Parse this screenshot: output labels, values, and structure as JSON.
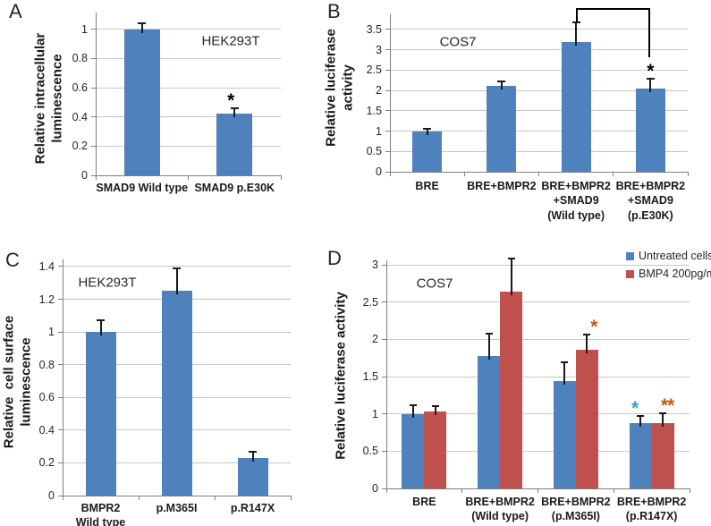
{
  "figure_background": "#ffffff",
  "colors": {
    "bar_blue": "#4F81BD",
    "bar_red": "#C0504D",
    "gridline": "#C6C6C6",
    "axis": "#7F7F7F",
    "error_bar": "#1A1A1A",
    "star_black": "#000000",
    "star_blue": "#2E9BD6",
    "star_orange": "#C55A11"
  },
  "chart_data": [
    {
      "id": "A",
      "type": "bar",
      "panel_label": "A",
      "inner_label": "HEK293T",
      "ylabel": "Relative intracellular\nluminescence",
      "xlabel": "",
      "categories": [
        "SMAD9 Wild type",
        "SMAD9 p.E30K"
      ],
      "series": [
        {
          "name": "",
          "color": "#4F81BD",
          "values": [
            1.0,
            0.42
          ],
          "errors": [
            0.04,
            0.04
          ]
        }
      ],
      "ylim": [
        0,
        1
      ],
      "yticks": [
        "0",
        "0.2",
        "0.4",
        "0.6",
        "0.8",
        "1"
      ],
      "ytick_values": [
        0,
        0.2,
        0.4,
        0.6,
        0.8,
        1
      ],
      "grid": true,
      "legend": null,
      "annotations": [
        {
          "type": "star",
          "text": "*",
          "color": "#000000",
          "series": 0,
          "category": 1,
          "dx": -4
        }
      ]
    },
    {
      "id": "B",
      "type": "bar",
      "panel_label": "B",
      "inner_label": "COS7",
      "ylabel": "Relative luciferase\nactivity",
      "xlabel": "",
      "categories": [
        "BRE",
        "BRE+BMPR2",
        "BRE+BMPR2\n+SMAD9\n(Wild type)",
        "BRE+BMPR2\n+SMAD9\n(p.E30K)"
      ],
      "series": [
        {
          "name": "",
          "color": "#4F81BD",
          "values": [
            1.0,
            2.12,
            3.2,
            2.05
          ],
          "errors": [
            0.05,
            0.1,
            0.48,
            0.25
          ]
        }
      ],
      "ylim": [
        0,
        3.5
      ],
      "yticks": [
        "0",
        "0.5",
        "1",
        "1.5",
        "2",
        "2.5",
        "3",
        "3.5"
      ],
      "ytick_values": [
        0,
        0.5,
        1,
        1.5,
        2,
        2.5,
        3,
        3.5
      ],
      "grid": true,
      "legend": null,
      "annotations": [
        {
          "type": "star",
          "text": "*",
          "color": "#000000",
          "series": 0,
          "category": 3,
          "dx": 0
        },
        {
          "type": "bracket",
          "from_category": 2,
          "to_category": 3,
          "top_y": 9,
          "left_drop": 16,
          "right_drop": 55
        }
      ]
    },
    {
      "id": "C",
      "type": "bar",
      "panel_label": "C",
      "inner_label": "HEK293T",
      "ylabel": "Relative  cell surface\nluminescence",
      "xlabel": "",
      "categories": [
        "BMPR2\nWild type",
        "p.M365I",
        "p.R147X"
      ],
      "series": [
        {
          "name": "",
          "color": "#4F81BD",
          "values": [
            1.0,
            1.25,
            0.23
          ],
          "errors": [
            0.07,
            0.14,
            0.04
          ]
        }
      ],
      "ylim": [
        0,
        1.4
      ],
      "yticks": [
        "0",
        "0.2",
        "0.4",
        "0.6",
        "0.8",
        "1",
        "1.2",
        "1.4"
      ],
      "ytick_values": [
        0,
        0.2,
        0.4,
        0.6,
        0.8,
        1,
        1.2,
        1.4
      ],
      "grid": true,
      "legend": null,
      "annotations": []
    },
    {
      "id": "D",
      "type": "bar",
      "panel_label": "D",
      "inner_label": "COS7",
      "ylabel": "Relative luciferase activity",
      "xlabel": "",
      "categories": [
        "BRE",
        "BRE+BMPR2\n(Wild type)",
        "BRE+BMPR2\n(p.M365I)",
        "BRE+BMPR2\n(p.R147X)"
      ],
      "series": [
        {
          "name": "Untreated cells",
          "color": "#4F81BD",
          "values": [
            1.0,
            1.78,
            1.44,
            0.88
          ],
          "errors": [
            0.12,
            0.3,
            0.25,
            0.09
          ]
        },
        {
          "name": "BMP4 200pg/ml",
          "color": "#C0504D",
          "values": [
            1.03,
            2.64,
            1.86,
            0.88
          ],
          "errors": [
            0.08,
            0.45,
            0.21,
            0.13
          ]
        }
      ],
      "ylim": [
        0,
        3
      ],
      "yticks": [
        "0",
        "0.5",
        "1",
        "1.5",
        "2",
        "2.5",
        "3"
      ],
      "ytick_values": [
        0,
        0.5,
        1,
        1.5,
        2,
        2.5,
        3
      ],
      "grid": true,
      "legend": {
        "position": "top-right",
        "labels": [
          "Untreated cells",
          "BMP4 200pg/ml"
        ]
      },
      "annotations": [
        {
          "type": "star",
          "text": "*",
          "color": "#C55A11",
          "series": 1,
          "category": 2,
          "dx": 8
        },
        {
          "type": "star",
          "text": "*",
          "color": "#2E9BD6",
          "series": 0,
          "category": 3,
          "dx": -6
        },
        {
          "type": "star",
          "text": "**",
          "color": "#C55A11",
          "series": 1,
          "category": 3,
          "dx": 5
        }
      ]
    }
  ]
}
